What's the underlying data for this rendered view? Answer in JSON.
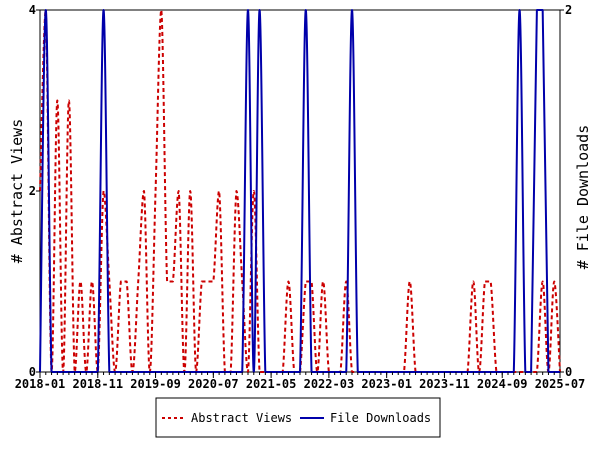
{
  "chart_data": {
    "type": "line",
    "title": "",
    "xlabel": "",
    "ylabel_left": "# Abstract Views",
    "ylabel_right": "# File Downloads",
    "ylim_left": [
      0,
      4
    ],
    "ylim_right": [
      0,
      2
    ],
    "left_ticks": [
      "0",
      "2",
      "4"
    ],
    "right_ticks": [
      "0",
      "2"
    ],
    "x_tick_labels": [
      "2018-01",
      "2018-11",
      "2019-09",
      "2020-07",
      "2021-05",
      "2022-03",
      "2023-01",
      "2023-11",
      "2024-09",
      "2025-07"
    ],
    "grid": false,
    "legend_position": "bottom",
    "series": [
      {
        "name": "Abstract Views",
        "axis": "left",
        "color": "#cc0000",
        "style": "dashed",
        "x": [
          "2018-01",
          "2018-02",
          "2018-03",
          "2018-04",
          "2018-05",
          "2018-06",
          "2018-07",
          "2018-08",
          "2018-09",
          "2018-10",
          "2018-11",
          "2018-12",
          "2019-01",
          "2019-02",
          "2019-03",
          "2019-04",
          "2019-05",
          "2019-06",
          "2019-07",
          "2019-08",
          "2019-09",
          "2019-10",
          "2019-11",
          "2019-12",
          "2020-01",
          "2020-02",
          "2020-03",
          "2020-04",
          "2020-05",
          "2020-06",
          "2020-07",
          "2020-08",
          "2020-09",
          "2020-10",
          "2020-11",
          "2020-12",
          "2021-01",
          "2021-02",
          "2021-03",
          "2021-04",
          "2021-05",
          "2021-06",
          "2021-07",
          "2021-08",
          "2021-09",
          "2021-10",
          "2021-11",
          "2021-12",
          "2022-01",
          "2022-02",
          "2022-03",
          "2022-04",
          "2022-05",
          "2022-06",
          "2022-07",
          "2022-08",
          "2022-09",
          "2022-10",
          "2022-11",
          "2022-12",
          "2023-01",
          "2023-02",
          "2023-03",
          "2023-04",
          "2023-05",
          "2023-06",
          "2023-07",
          "2023-08",
          "2023-09",
          "2023-10",
          "2023-11",
          "2023-12",
          "2024-01",
          "2024-02",
          "2024-03",
          "2024-04",
          "2024-05",
          "2024-06",
          "2024-07",
          "2024-08",
          "2024-09",
          "2024-10",
          "2024-11",
          "2024-12",
          "2025-01",
          "2025-02",
          "2025-03",
          "2025-04",
          "2025-05",
          "2025-06",
          "2025-07"
        ],
        "values": [
          2,
          4,
          0,
          3,
          0,
          3,
          0,
          1,
          0,
          1,
          0,
          2,
          1,
          0,
          1,
          1,
          0,
          1,
          2,
          0,
          2,
          4,
          1,
          1,
          2,
          0,
          2,
          0,
          1,
          1,
          1,
          2,
          0,
          0,
          2,
          1,
          0,
          2,
          0,
          0,
          0,
          0,
          0,
          1,
          0,
          0,
          1,
          1,
          0,
          1,
          0,
          0,
          0,
          1,
          0,
          0,
          0,
          0,
          0,
          0,
          0,
          0,
          0,
          0,
          1,
          0,
          0,
          0,
          0,
          0,
          0,
          0,
          0,
          0,
          0,
          1,
          0,
          1,
          1,
          0,
          0,
          0,
          0,
          0,
          0,
          0,
          0,
          1,
          0,
          1,
          0
        ]
      },
      {
        "name": "File Downloads",
        "axis": "right",
        "color": "#0000aa",
        "style": "solid",
        "x": [
          "2018-01",
          "2018-02",
          "2018-03",
          "2018-04",
          "2018-05",
          "2018-06",
          "2018-07",
          "2018-08",
          "2018-09",
          "2018-10",
          "2018-11",
          "2018-12",
          "2019-01",
          "2019-02",
          "2019-03",
          "2019-04",
          "2019-05",
          "2019-06",
          "2019-07",
          "2019-08",
          "2019-09",
          "2019-10",
          "2019-11",
          "2019-12",
          "2020-01",
          "2020-02",
          "2020-03",
          "2020-04",
          "2020-05",
          "2020-06",
          "2020-07",
          "2020-08",
          "2020-09",
          "2020-10",
          "2020-11",
          "2020-12",
          "2021-01",
          "2021-02",
          "2021-03",
          "2021-04",
          "2021-05",
          "2021-06",
          "2021-07",
          "2021-08",
          "2021-09",
          "2021-10",
          "2021-11",
          "2021-12",
          "2022-01",
          "2022-02",
          "2022-03",
          "2022-04",
          "2022-05",
          "2022-06",
          "2022-07",
          "2022-08",
          "2022-09",
          "2022-10",
          "2022-11",
          "2022-12",
          "2023-01",
          "2023-02",
          "2023-03",
          "2023-04",
          "2023-05",
          "2023-06",
          "2023-07",
          "2023-08",
          "2023-09",
          "2023-10",
          "2023-11",
          "2023-12",
          "2024-01",
          "2024-02",
          "2024-03",
          "2024-04",
          "2024-05",
          "2024-06",
          "2024-07",
          "2024-08",
          "2024-09",
          "2024-10",
          "2024-11",
          "2024-12",
          "2025-01",
          "2025-02",
          "2025-03",
          "2025-04",
          "2025-05",
          "2025-06",
          "2025-07"
        ],
        "values": [
          0,
          2,
          0,
          0,
          0,
          0,
          0,
          0,
          0,
          0,
          0,
          2,
          0,
          0,
          0,
          0,
          0,
          0,
          0,
          0,
          0,
          0,
          0,
          0,
          0,
          0,
          0,
          0,
          0,
          0,
          0,
          0,
          0,
          0,
          0,
          0,
          2,
          0,
          2,
          0,
          0,
          0,
          0,
          0,
          0,
          0,
          2,
          0,
          0,
          0,
          0,
          0,
          0,
          0,
          2,
          0,
          0,
          0,
          0,
          0,
          0,
          0,
          0,
          0,
          0,
          0,
          0,
          0,
          0,
          0,
          0,
          0,
          0,
          0,
          0,
          0,
          0,
          0,
          0,
          0,
          0,
          0,
          0,
          2,
          0,
          0,
          2,
          2,
          0,
          0,
          0
        ]
      }
    ]
  }
}
